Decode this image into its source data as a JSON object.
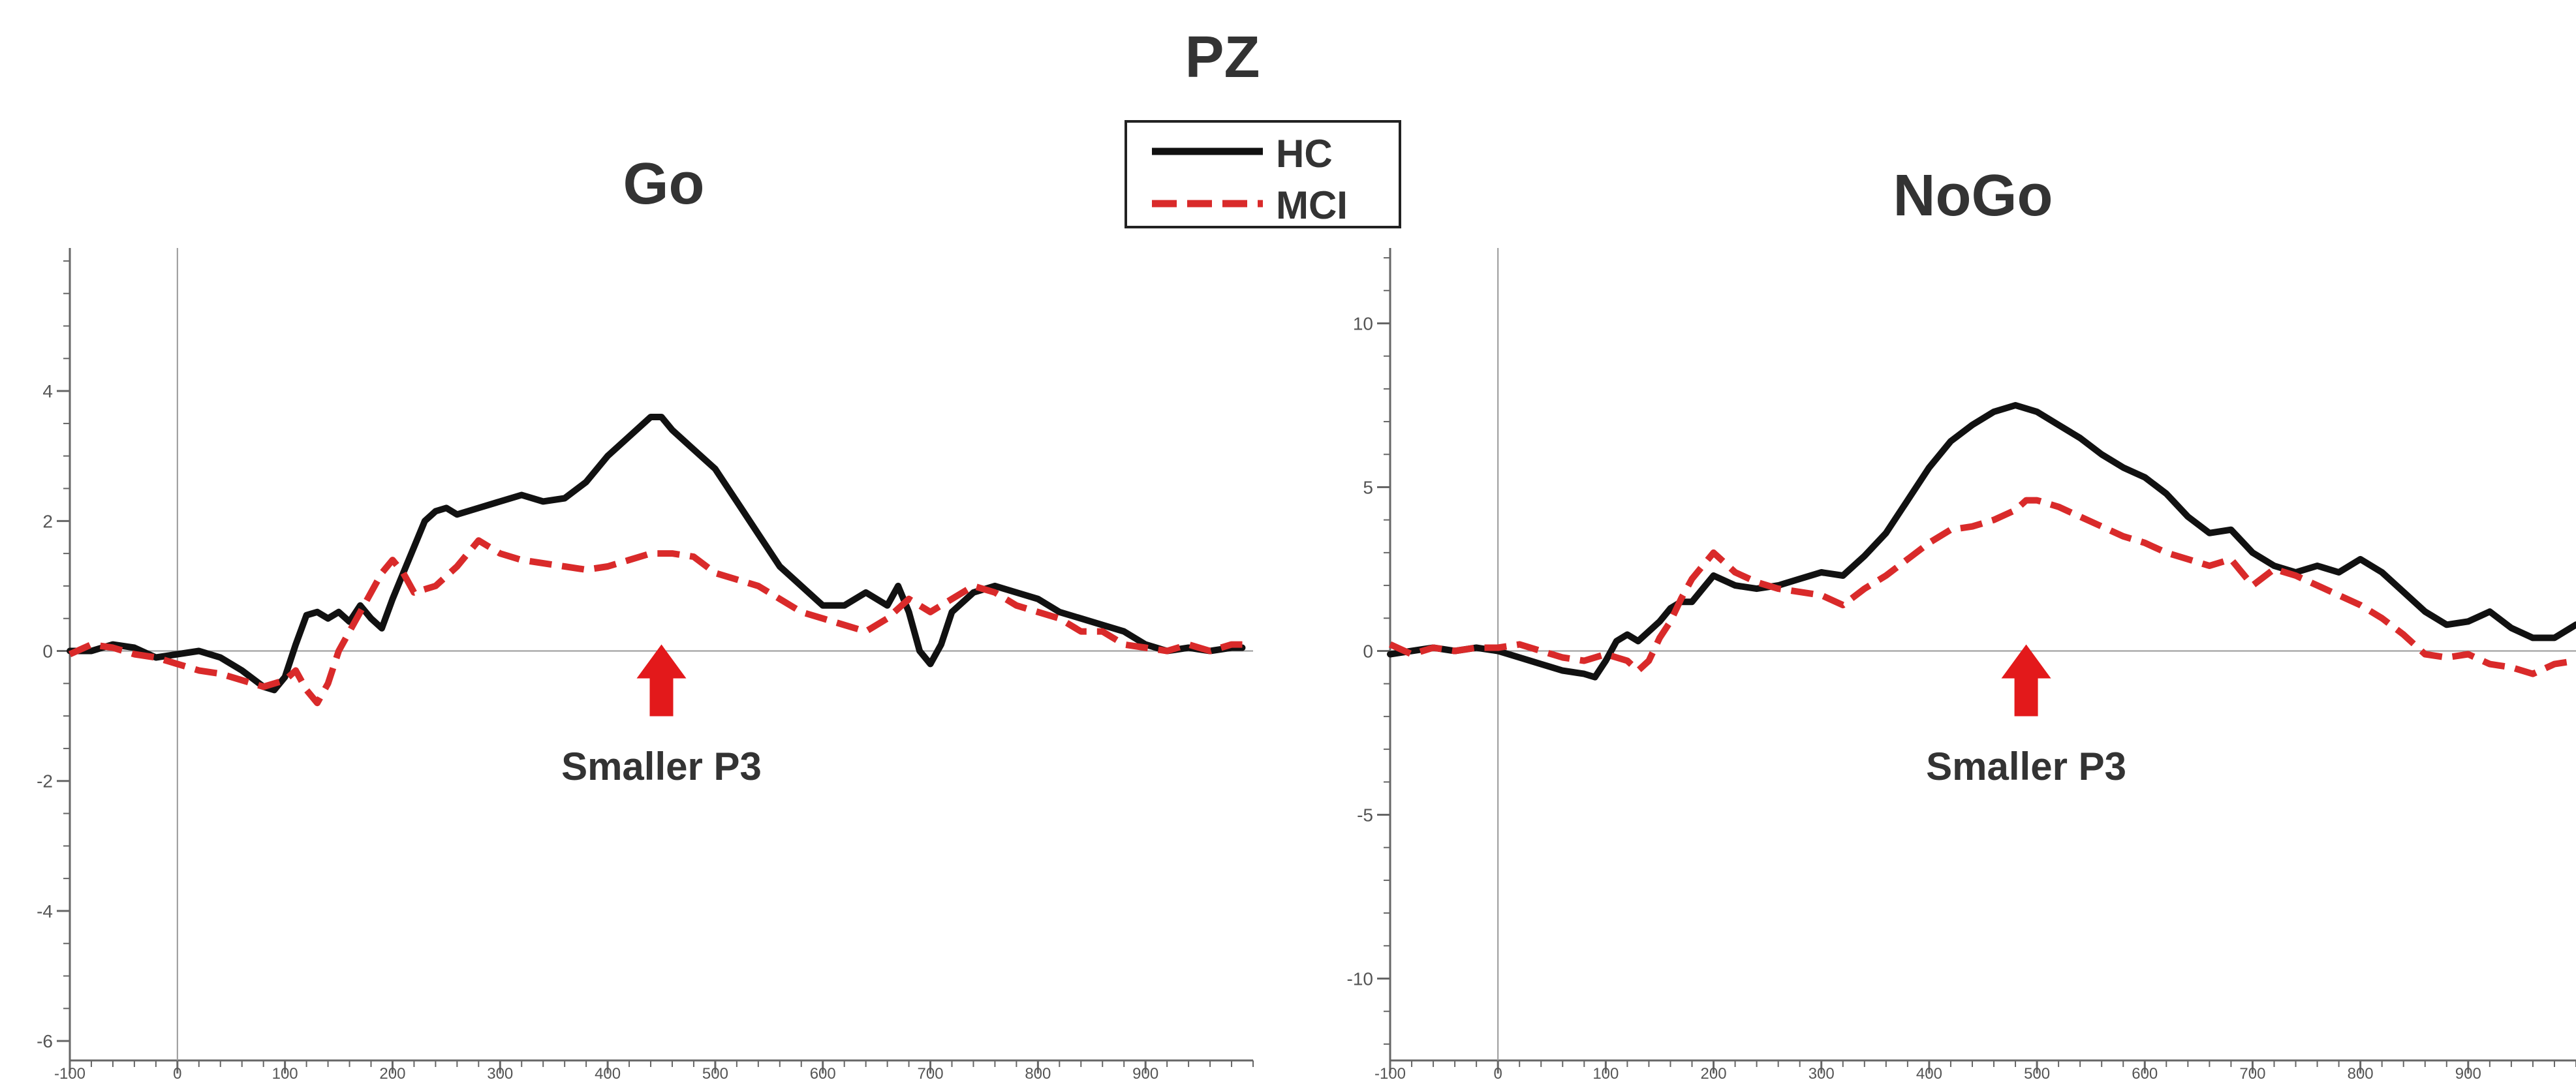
{
  "figure": {
    "title": "PZ",
    "legend": [
      {
        "label": "HC",
        "color": "#111111",
        "dash": "solid"
      },
      {
        "label": "MCI",
        "color": "#d92a2a",
        "dash": "dashed"
      }
    ],
    "annotation_color": "#e3191b"
  },
  "chart_data": [
    {
      "type": "line",
      "title": "Go",
      "xlabel": "",
      "ylabel": "",
      "xlim": [
        -100,
        1000
      ],
      "ylim": [
        -6.3,
        6.2
      ],
      "x_ticks": [
        -100,
        0,
        100,
        200,
        300,
        400,
        500,
        600,
        700,
        800,
        900
      ],
      "y_ticks": [
        -6,
        -4,
        -2,
        0,
        2,
        4
      ],
      "y_minor_step": 0.5,
      "grid": false,
      "legend_position": "top-center",
      "annotation": {
        "text": "Smaller P3",
        "x": 450
      },
      "series": [
        {
          "name": "HC",
          "x": [
            -100,
            -80,
            -60,
            -40,
            -20,
            0,
            20,
            40,
            60,
            80,
            90,
            100,
            110,
            120,
            130,
            140,
            150,
            160,
            170,
            180,
            190,
            200,
            210,
            220,
            230,
            240,
            250,
            260,
            270,
            280,
            300,
            320,
            340,
            360,
            380,
            400,
            420,
            440,
            450,
            460,
            480,
            500,
            520,
            540,
            560,
            580,
            600,
            620,
            640,
            660,
            670,
            680,
            690,
            700,
            710,
            720,
            740,
            760,
            780,
            800,
            820,
            840,
            860,
            880,
            900,
            920,
            940,
            960,
            980,
            990
          ],
          "y": [
            0.0,
            0.0,
            0.1,
            0.05,
            -0.1,
            -0.05,
            0.0,
            -0.1,
            -0.3,
            -0.55,
            -0.6,
            -0.4,
            0.1,
            0.55,
            0.6,
            0.5,
            0.6,
            0.45,
            0.7,
            0.5,
            0.35,
            0.8,
            1.2,
            1.6,
            2.0,
            2.15,
            2.2,
            2.1,
            2.15,
            2.2,
            2.3,
            2.4,
            2.3,
            2.35,
            2.6,
            3.0,
            3.3,
            3.6,
            3.6,
            3.4,
            3.1,
            2.8,
            2.3,
            1.8,
            1.3,
            1.0,
            0.7,
            0.7,
            0.9,
            0.7,
            1.0,
            0.6,
            0.0,
            -0.2,
            0.1,
            0.6,
            0.9,
            1.0,
            0.9,
            0.8,
            0.6,
            0.5,
            0.4,
            0.3,
            0.1,
            0.0,
            0.05,
            0.0,
            0.05,
            0.05
          ]
        },
        {
          "name": "MCI",
          "x": [
            -100,
            -80,
            -60,
            -40,
            -20,
            0,
            20,
            40,
            60,
            80,
            100,
            110,
            120,
            130,
            140,
            150,
            160,
            170,
            180,
            190,
            200,
            210,
            220,
            240,
            260,
            280,
            300,
            320,
            340,
            360,
            380,
            400,
            420,
            440,
            460,
            480,
            500,
            520,
            540,
            560,
            580,
            600,
            620,
            640,
            660,
            680,
            700,
            720,
            740,
            760,
            780,
            800,
            820,
            840,
            860,
            880,
            900,
            920,
            940,
            960,
            980,
            990
          ],
          "y": [
            -0.05,
            0.1,
            0.05,
            -0.05,
            -0.1,
            -0.2,
            -0.3,
            -0.35,
            -0.45,
            -0.55,
            -0.45,
            -0.3,
            -0.6,
            -0.8,
            -0.5,
            0.0,
            0.3,
            0.6,
            0.9,
            1.2,
            1.4,
            1.2,
            0.9,
            1.0,
            1.3,
            1.7,
            1.5,
            1.4,
            1.35,
            1.3,
            1.25,
            1.3,
            1.4,
            1.5,
            1.5,
            1.45,
            1.2,
            1.1,
            1.0,
            0.8,
            0.6,
            0.5,
            0.4,
            0.3,
            0.5,
            0.8,
            0.6,
            0.8,
            1.0,
            0.9,
            0.7,
            0.6,
            0.5,
            0.3,
            0.3,
            0.1,
            0.05,
            0.0,
            0.1,
            0.0,
            0.1,
            0.1
          ]
        }
      ]
    },
    {
      "type": "line",
      "title": "NoGo",
      "xlabel": "",
      "ylabel": "",
      "xlim": [
        -100,
        1000
      ],
      "ylim": [
        -12.5,
        12.3
      ],
      "x_ticks": [
        -100,
        0,
        100,
        200,
        300,
        400,
        500,
        600,
        700,
        800,
        900
      ],
      "y_ticks": [
        -10,
        -5,
        0,
        5,
        10
      ],
      "y_minor_step": 1,
      "grid": false,
      "legend_position": "top-center",
      "annotation": {
        "text": "Smaller P3",
        "x": 490
      },
      "series": [
        {
          "name": "HC",
          "x": [
            -100,
            -80,
            -60,
            -40,
            -20,
            0,
            20,
            40,
            60,
            80,
            90,
            100,
            110,
            120,
            130,
            140,
            150,
            160,
            170,
            180,
            190,
            200,
            220,
            240,
            260,
            280,
            300,
            320,
            340,
            360,
            380,
            400,
            420,
            440,
            460,
            480,
            490,
            500,
            520,
            540,
            560,
            580,
            600,
            620,
            640,
            660,
            680,
            700,
            720,
            740,
            760,
            780,
            800,
            820,
            840,
            860,
            880,
            900,
            920,
            940,
            960,
            980,
            1000
          ],
          "y": [
            -0.1,
            0.0,
            0.1,
            0.0,
            0.1,
            0.0,
            -0.2,
            -0.4,
            -0.6,
            -0.7,
            -0.8,
            -0.3,
            0.3,
            0.5,
            0.3,
            0.6,
            0.9,
            1.3,
            1.5,
            1.5,
            1.9,
            2.3,
            2.0,
            1.9,
            2.0,
            2.2,
            2.4,
            2.3,
            2.9,
            3.6,
            4.6,
            5.6,
            6.4,
            6.9,
            7.3,
            7.5,
            7.4,
            7.3,
            6.9,
            6.5,
            6.0,
            5.6,
            5.3,
            4.8,
            4.1,
            3.6,
            3.7,
            3.0,
            2.6,
            2.4,
            2.6,
            2.4,
            2.8,
            2.4,
            1.8,
            1.2,
            0.8,
            0.9,
            1.2,
            0.7,
            0.4,
            0.4,
            0.8
          ]
        },
        {
          "name": "MCI",
          "x": [
            -100,
            -80,
            -60,
            -40,
            -20,
            0,
            20,
            40,
            60,
            80,
            100,
            110,
            120,
            130,
            140,
            150,
            160,
            170,
            180,
            190,
            200,
            210,
            220,
            240,
            260,
            280,
            300,
            320,
            340,
            360,
            380,
            400,
            420,
            440,
            460,
            480,
            490,
            500,
            520,
            540,
            560,
            580,
            600,
            620,
            640,
            660,
            680,
            700,
            720,
            740,
            760,
            780,
            800,
            820,
            840,
            860,
            880,
            900,
            920,
            940,
            960,
            980,
            1000
          ],
          "y": [
            0.2,
            -0.1,
            0.1,
            0.0,
            0.1,
            0.1,
            0.2,
            0.0,
            -0.2,
            -0.3,
            -0.1,
            -0.2,
            -0.3,
            -0.6,
            -0.3,
            0.4,
            0.9,
            1.6,
            2.2,
            2.6,
            3.0,
            2.7,
            2.4,
            2.1,
            1.9,
            1.8,
            1.7,
            1.4,
            1.9,
            2.3,
            2.8,
            3.3,
            3.7,
            3.8,
            4.0,
            4.3,
            4.6,
            4.6,
            4.4,
            4.1,
            3.8,
            3.5,
            3.3,
            3.0,
            2.8,
            2.6,
            2.8,
            2.0,
            2.5,
            2.3,
            2.0,
            1.7,
            1.4,
            1.0,
            0.5,
            -0.1,
            -0.2,
            -0.1,
            -0.4,
            -0.5,
            -0.7,
            -0.4,
            -0.3
          ]
        }
      ]
    }
  ]
}
